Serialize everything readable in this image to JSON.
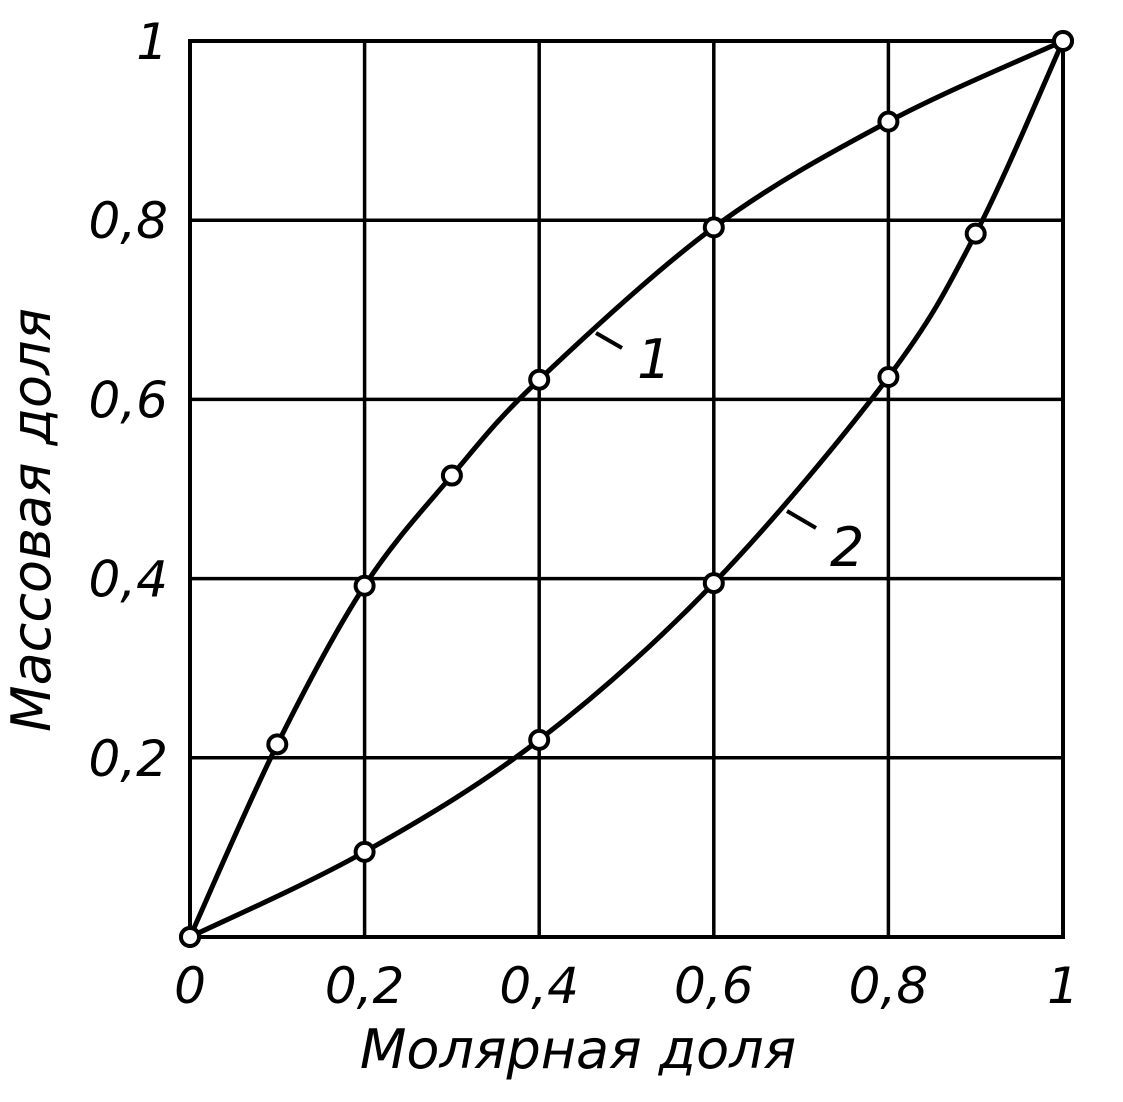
{
  "chart_data": {
    "type": "line",
    "title": "",
    "xlabel": "Молярная доля",
    "ylabel": "Массовая доля",
    "xlim": [
      0,
      1
    ],
    "ylim": [
      0,
      1
    ],
    "grid": true,
    "x_ticks": [
      {
        "value": 0,
        "label": "0"
      },
      {
        "value": 0.2,
        "label": "0,2"
      },
      {
        "value": 0.4,
        "label": "0,4"
      },
      {
        "value": 0.6,
        "label": "0,6"
      },
      {
        "value": 0.8,
        "label": "0,8"
      },
      {
        "value": 1,
        "label": "1"
      }
    ],
    "y_ticks": [
      {
        "value": 0.2,
        "label": "0,2"
      },
      {
        "value": 0.4,
        "label": "0,4"
      },
      {
        "value": 0.6,
        "label": "0,6"
      },
      {
        "value": 0.8,
        "label": "0,8"
      },
      {
        "value": 1,
        "label": "1"
      }
    ],
    "series": [
      {
        "name": "1",
        "points": [
          [
            0.0,
            0.0
          ],
          [
            0.1,
            0.215
          ],
          [
            0.2,
            0.392
          ],
          [
            0.3,
            0.515
          ],
          [
            0.4,
            0.622
          ],
          [
            0.6,
            0.792
          ],
          [
            0.8,
            0.91
          ],
          [
            1.0,
            1.0
          ]
        ]
      },
      {
        "name": "2",
        "points": [
          [
            0.0,
            0.0
          ],
          [
            0.2,
            0.095
          ],
          [
            0.4,
            0.22
          ],
          [
            0.6,
            0.395
          ],
          [
            0.8,
            0.625
          ],
          [
            0.9,
            0.785
          ],
          [
            1.0,
            1.0
          ]
        ]
      }
    ]
  }
}
